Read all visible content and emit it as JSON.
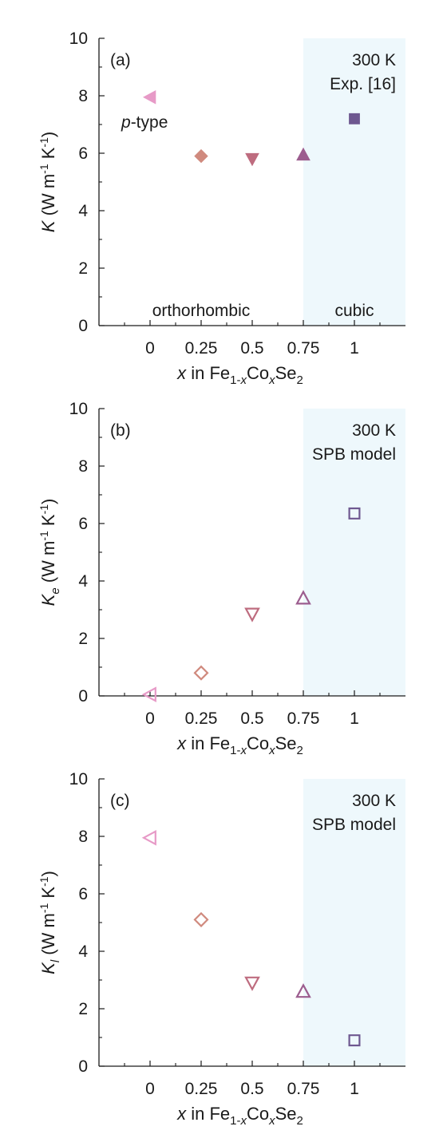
{
  "figure": {
    "background_color": "#ffffff",
    "axis_color": "#1a1a1a",
    "cubic_region_color": "#eef8fc"
  },
  "chart_data": [
    {
      "panel": "(a)",
      "type": "scatter",
      "filled": true,
      "xlabel": {
        "var": "x",
        "text": " in Fe",
        "sub1": "1-",
        "sub1_var": "x",
        "mid": "Co",
        "sub2_var": "x",
        "end": "Se",
        "sub2": "2"
      },
      "ylabel": {
        "var": "K",
        "sub": "",
        "unit": " (W m",
        "exp1": "-1",
        "unit_mid": " K",
        "exp2": "-1",
        "close": ")"
      },
      "x_ticks": [
        "0",
        "0.25",
        "0.5",
        "0.75",
        "1"
      ],
      "x_tick_values": [
        0,
        0.25,
        0.5,
        0.75,
        1
      ],
      "y_ticks": [
        "0",
        "2",
        "4",
        "6",
        "8",
        "10"
      ],
      "ylim": [
        0,
        10
      ],
      "xlim": [
        -0.25,
        1.25
      ],
      "cubic_region_from": 0.75,
      "annotations": {
        "panel_label": "(a)",
        "temperature": "300 K",
        "source": "Exp. [16]",
        "p_type": "-type",
        "p_type_var": "p",
        "region_left": "orthorhombic",
        "region_right": "cubic"
      },
      "points": [
        {
          "x": 0,
          "y": 7.95,
          "marker": "triangle-left",
          "color": "#e79ac7"
        },
        {
          "x": 0.25,
          "y": 5.9,
          "marker": "diamond",
          "color": "#d08a7e"
        },
        {
          "x": 0.5,
          "y": 5.8,
          "marker": "triangle-down",
          "color": "#be6c7f"
        },
        {
          "x": 0.75,
          "y": 5.95,
          "marker": "triangle-up",
          "color": "#9c5d8f"
        },
        {
          "x": 1,
          "y": 7.2,
          "marker": "square",
          "color": "#6e5890"
        }
      ]
    },
    {
      "panel": "(b)",
      "type": "scatter",
      "filled": false,
      "xlabel": {
        "var": "x",
        "text": " in Fe",
        "sub1": "1-",
        "sub1_var": "x",
        "mid": "Co",
        "sub2_var": "x",
        "end": "Se",
        "sub2": "2"
      },
      "ylabel": {
        "var": "K",
        "sub": "e",
        "unit": " (W m",
        "exp1": "-1",
        "unit_mid": " K",
        "exp2": "-1",
        "close": ")"
      },
      "x_ticks": [
        "0",
        "0.25",
        "0.5",
        "0.75",
        "1"
      ],
      "x_tick_values": [
        0,
        0.25,
        0.5,
        0.75,
        1
      ],
      "y_ticks": [
        "0",
        "2",
        "4",
        "6",
        "8",
        "10"
      ],
      "ylim": [
        0,
        10
      ],
      "xlim": [
        -0.25,
        1.25
      ],
      "cubic_region_from": 0.75,
      "annotations": {
        "panel_label": "(b)",
        "temperature": "300 K",
        "source": "SPB model"
      },
      "points": [
        {
          "x": 0,
          "y": 0.05,
          "marker": "triangle-left",
          "color": "#e79ac7"
        },
        {
          "x": 0.25,
          "y": 0.8,
          "marker": "diamond",
          "color": "#d08a7e"
        },
        {
          "x": 0.5,
          "y": 2.85,
          "marker": "triangle-down",
          "color": "#be6c7f"
        },
        {
          "x": 0.75,
          "y": 3.4,
          "marker": "triangle-up",
          "color": "#9c5d8f"
        },
        {
          "x": 1,
          "y": 6.35,
          "marker": "square",
          "color": "#6e5890"
        }
      ]
    },
    {
      "panel": "(c)",
      "type": "scatter",
      "filled": false,
      "xlabel": {
        "var": "x",
        "text": " in Fe",
        "sub1": "1-",
        "sub1_var": "x",
        "mid": "Co",
        "sub2_var": "x",
        "end": "Se",
        "sub2": "2"
      },
      "ylabel": {
        "var": "K",
        "sub": "l",
        "unit": " (W m",
        "exp1": "-1",
        "unit_mid": " K",
        "exp2": "-1",
        "close": ")"
      },
      "x_ticks": [
        "0",
        "0.25",
        "0.5",
        "0.75",
        "1"
      ],
      "x_tick_values": [
        0,
        0.25,
        0.5,
        0.75,
        1
      ],
      "y_ticks": [
        "0",
        "2",
        "4",
        "6",
        "8",
        "10"
      ],
      "ylim": [
        0,
        10
      ],
      "xlim": [
        -0.25,
        1.25
      ],
      "cubic_region_from": 0.75,
      "annotations": {
        "panel_label": "(c)",
        "temperature": "300 K",
        "source": "SPB model"
      },
      "points": [
        {
          "x": 0,
          "y": 7.95,
          "marker": "triangle-left",
          "color": "#e79ac7"
        },
        {
          "x": 0.25,
          "y": 5.1,
          "marker": "diamond",
          "color": "#d08a7e"
        },
        {
          "x": 0.5,
          "y": 2.9,
          "marker": "triangle-down",
          "color": "#be6c7f"
        },
        {
          "x": 0.75,
          "y": 2.6,
          "marker": "triangle-up",
          "color": "#9c5d8f"
        },
        {
          "x": 1,
          "y": 0.9,
          "marker": "square",
          "color": "#6e5890"
        }
      ]
    }
  ]
}
